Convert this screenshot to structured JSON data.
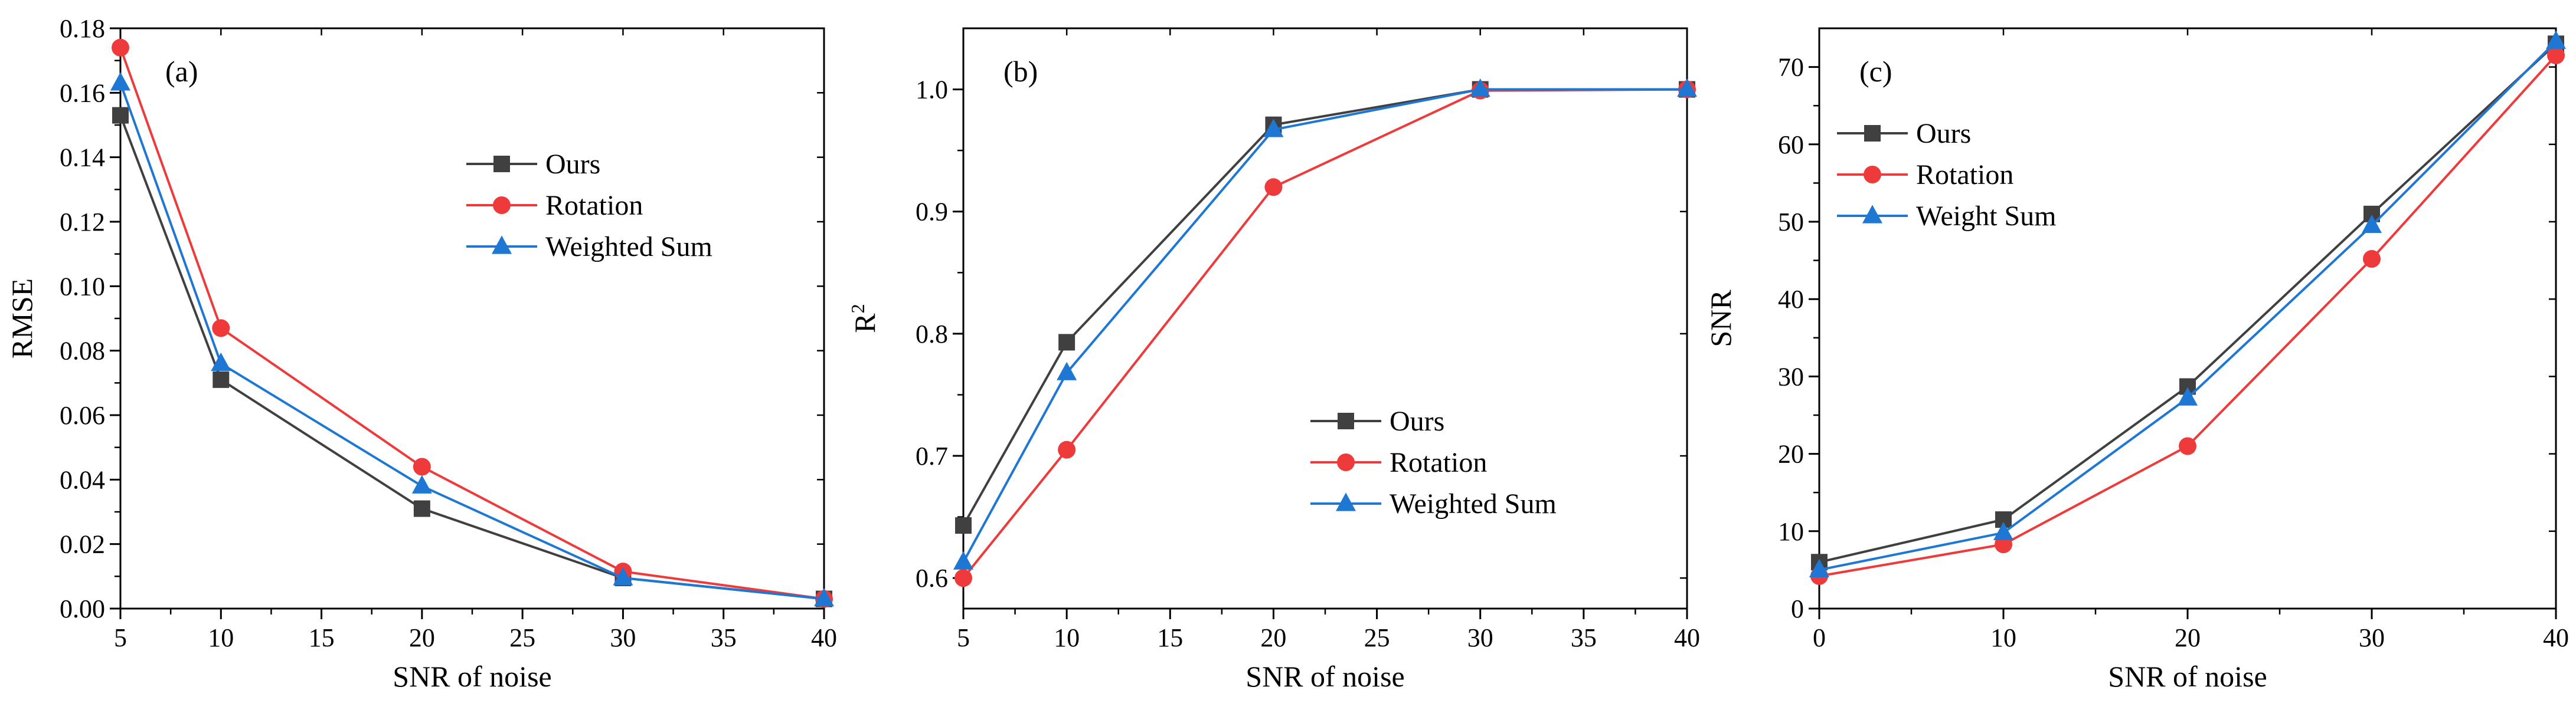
{
  "chart_data": [
    {
      "type": "line",
      "panel_label": "(a)",
      "xlabel": "SNR of noise",
      "ylabel": "RMSE",
      "ylabel_sup": "",
      "xlim": [
        5,
        40
      ],
      "ylim": [
        0,
        0.18
      ],
      "xticks": [
        5,
        10,
        15,
        20,
        25,
        30,
        35,
        40
      ],
      "xtick_labels": [
        "5",
        "10",
        "15",
        "20",
        "25",
        "30",
        "35",
        "40"
      ],
      "yticks": [
        0,
        0.02,
        0.04,
        0.06,
        0.08,
        0.1,
        0.12,
        0.14,
        0.16,
        0.18
      ],
      "ytick_labels": [
        "0.00",
        "0.02",
        "0.04",
        "0.06",
        "0.08",
        "0.10",
        "0.12",
        "0.14",
        "0.16",
        "0.18"
      ],
      "x": [
        5,
        10,
        20,
        30,
        40
      ],
      "legend_position": "center-right",
      "series": [
        {
          "name": "Ours",
          "color": "#404040",
          "marker": "square",
          "values": [
            0.153,
            0.071,
            0.031,
            0.0095,
            0.003
          ]
        },
        {
          "name": "Rotation",
          "color": "#ee3a3a",
          "marker": "circle",
          "values": [
            0.174,
            0.087,
            0.044,
            0.0115,
            0.003
          ]
        },
        {
          "name": "Weighted Sum",
          "color": "#1f77d4",
          "marker": "triangle",
          "values": [
            0.163,
            0.076,
            0.038,
            0.0095,
            0.003
          ]
        }
      ]
    },
    {
      "type": "line",
      "panel_label": "(b)",
      "xlabel": "SNR of noise",
      "ylabel": "R",
      "ylabel_sup": "2",
      "xlim": [
        5,
        40
      ],
      "ylim": [
        0.575,
        1.05
      ],
      "xticks": [
        5,
        10,
        15,
        20,
        25,
        30,
        35,
        40
      ],
      "xtick_labels": [
        "5",
        "10",
        "15",
        "20",
        "25",
        "30",
        "35",
        "40"
      ],
      "yticks": [
        0.6,
        0.7,
        0.8,
        0.9,
        1.0
      ],
      "ytick_labels": [
        "0.6",
        "0.7",
        "0.8",
        "0.9",
        "1.0"
      ],
      "x": [
        5,
        10,
        20,
        30,
        40
      ],
      "legend_position": "lower-right",
      "series": [
        {
          "name": "Ours",
          "color": "#404040",
          "marker": "square",
          "values": [
            0.643,
            0.793,
            0.971,
            1.0,
            1.0
          ]
        },
        {
          "name": "Rotation",
          "color": "#ee3a3a",
          "marker": "circle",
          "values": [
            0.6,
            0.705,
            0.92,
            0.999,
            1.0
          ]
        },
        {
          "name": "Weighted Sum",
          "color": "#1f77d4",
          "marker": "triangle",
          "values": [
            0.613,
            0.768,
            0.967,
            1.0,
            1.0
          ]
        }
      ]
    },
    {
      "type": "line",
      "panel_label": "(c)",
      "xlabel": "SNR of noise",
      "ylabel": "SNR",
      "ylabel_sup": "",
      "xlim": [
        0,
        40
      ],
      "ylim": [
        0,
        75
      ],
      "xticks": [
        0,
        10,
        20,
        30,
        40
      ],
      "xtick_labels": [
        "0",
        "10",
        "20",
        "30",
        "40"
      ],
      "yticks": [
        0,
        10,
        20,
        30,
        40,
        50,
        60,
        70
      ],
      "ytick_labels": [
        "0",
        "10",
        "20",
        "30",
        "40",
        "50",
        "60",
        "70"
      ],
      "x": [
        0,
        10,
        20,
        30,
        40
      ],
      "legend_position": "upper-left",
      "series": [
        {
          "name": "Ours",
          "color": "#404040",
          "marker": "square",
          "values": [
            6.0,
            11.5,
            28.7,
            51.0,
            73.0
          ]
        },
        {
          "name": "Rotation",
          "color": "#ee3a3a",
          "marker": "circle",
          "values": [
            4.2,
            8.3,
            21.0,
            45.2,
            71.5
          ]
        },
        {
          "name": "Weight Sum",
          "color": "#1f77d4",
          "marker": "triangle",
          "values": [
            5.0,
            9.8,
            27.2,
            49.5,
            73.3
          ]
        }
      ]
    }
  ]
}
